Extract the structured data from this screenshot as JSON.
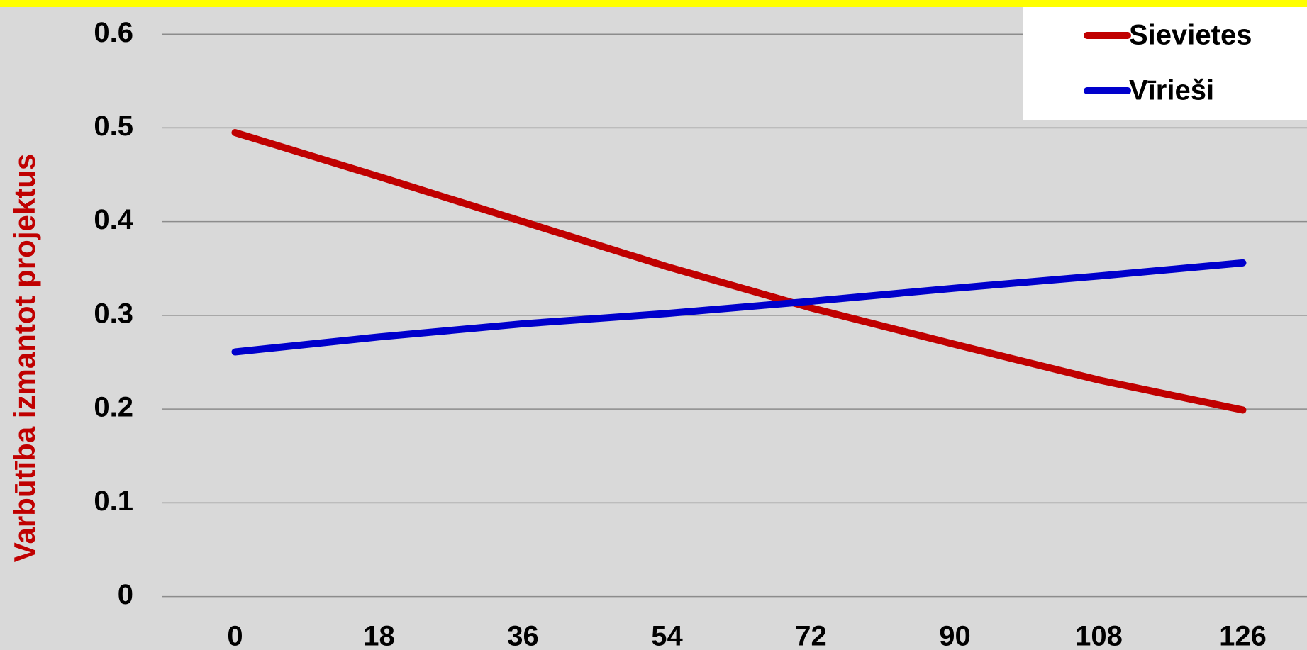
{
  "chart_data": {
    "type": "line",
    "y_label": "Varbūtība izmantot projektus",
    "x": [
      0,
      18,
      36,
      54,
      72,
      90,
      108,
      126
    ],
    "xlim": [
      0,
      126
    ],
    "xticks": [
      0,
      18,
      36,
      54,
      72,
      90,
      108,
      126
    ],
    "ylim": [
      0,
      0.6
    ],
    "yticks": [
      0,
      0.1,
      0.2,
      0.3,
      0.4,
      0.5,
      0.6
    ],
    "grid": true,
    "legend": "top-right",
    "series": [
      {
        "name": "Sievietes",
        "color": "#c00000",
        "values": [
          0.495,
          0.448,
          0.4,
          0.352,
          0.308,
          0.269,
          0.231,
          0.199
        ]
      },
      {
        "name": "Vīrieši",
        "color": "#0000cc",
        "values": [
          0.261,
          0.277,
          0.291,
          0.302,
          0.315,
          0.329,
          0.342,
          0.356
        ]
      }
    ]
  }
}
